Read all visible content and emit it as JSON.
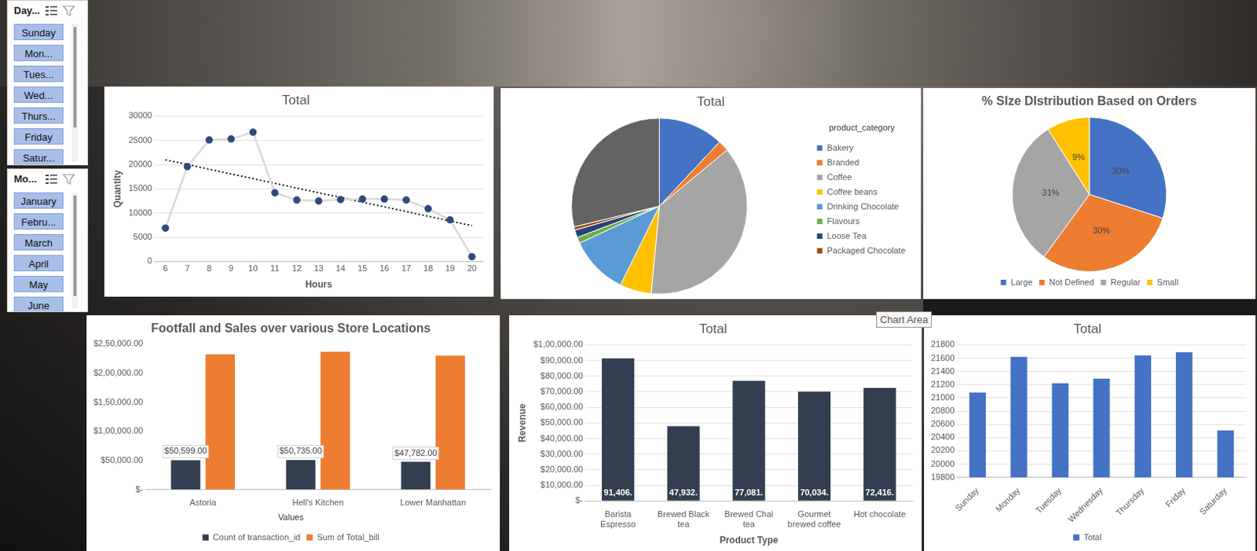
{
  "slicers": [
    {
      "title": "Day...",
      "items": [
        "Sunday",
        "Mon...",
        "Tues...",
        "Wed...",
        "Thurs...",
        "Friday",
        "Satur..."
      ]
    },
    {
      "title": "Mo...",
      "items": [
        "January",
        "Febru...",
        "March",
        "April",
        "May",
        "June"
      ]
    }
  ],
  "tooltip": "Chart Area",
  "chart_data": [
    {
      "type": "line",
      "title": "Total",
      "x": [
        6,
        7,
        8,
        9,
        10,
        11,
        12,
        13,
        14,
        15,
        16,
        17,
        18,
        19,
        20
      ],
      "values": [
        6900,
        19600,
        25100,
        25300,
        26700,
        14200,
        12700,
        12500,
        12800,
        12900,
        12900,
        12700,
        10900,
        8600,
        1000
      ],
      "color": "#d9d9d9",
      "marker": "circle",
      "trendline": {
        "x": [
          6,
          20
        ],
        "values": [
          21000,
          7400
        ],
        "line_style": "dotted",
        "color": "#000000"
      },
      "xlabel": "Hours",
      "ylabel": "Quantity",
      "xlim": [
        5.5,
        20.5
      ],
      "xticks": [
        6,
        7,
        8,
        9,
        10,
        11,
        12,
        13,
        14,
        15,
        16,
        17,
        18,
        19,
        20
      ],
      "ylim": [
        0,
        30000
      ],
      "yticks": [
        0,
        5000,
        10000,
        15000,
        20000,
        25000,
        30000
      ],
      "grid": true
    },
    {
      "type": "pie",
      "title": "Total",
      "legend_title": "product_category",
      "categories": [
        "Bakery",
        "Branded",
        "Coffee",
        "Coffee beans",
        "Drinking Chocolate",
        "Flavours",
        "Loose Tea",
        "Packaged Chocolate",
        null
      ],
      "values": [
        12,
        2,
        37.5,
        5.8,
        10.8,
        1.1,
        1.4,
        0.6,
        28.8
      ],
      "colors": [
        "#4472c4",
        "#ed7d31",
        "#a5a5a5",
        "#ffc000",
        "#5b9bd5",
        "#70ad47",
        "#264478",
        "#9e480e",
        "#636363"
      ],
      "legend": "right"
    },
    {
      "type": "pie",
      "title": "% SIze DIstribution Based on Orders",
      "categories": [
        "Large",
        "Not Defined",
        "Regular",
        "Small"
      ],
      "values": [
        30,
        30,
        31,
        9
      ],
      "value_labels": [
        "30%",
        "30%",
        "31%",
        "9%"
      ],
      "colors": [
        "#4472c4",
        "#ed7d31",
        "#a5a5a5",
        "#ffc000"
      ],
      "data_labels": true,
      "legend": "bottom"
    },
    {
      "type": "bar",
      "title": "Footfall and Sales over various Store Locations",
      "categories": [
        "Astoria",
        "Hell's Kitchen",
        "Lower Manhattan"
      ],
      "series": [
        {
          "name": "Count of transaction_id",
          "color": "#333f50",
          "values": [
            50599,
            50735,
            47782
          ],
          "value_labels": [
            "$50,599.00",
            "$50,735.00",
            "$47,782.00"
          ],
          "data_labels": true
        },
        {
          "name": "Sum of Total_bill",
          "color": "#ed7d31",
          "values": [
            232244,
            236511,
            230057
          ]
        }
      ],
      "ylim": [
        0,
        250000
      ],
      "yticks": [
        {
          "value": 0,
          "label": "$-"
        },
        {
          "value": 50000,
          "label": "$50,000.00"
        },
        {
          "value": 100000,
          "label": "$1,00,000.00"
        },
        {
          "value": 150000,
          "label": "$1,50,000.00"
        },
        {
          "value": 200000,
          "label": "$2,00,000.00"
        },
        {
          "value": 250000,
          "label": "$2,50,000.00"
        }
      ],
      "grid": false,
      "legend": "bottom",
      "legend_title": "Values"
    },
    {
      "type": "bar",
      "title": "Total",
      "categories": [
        "Barista Espresso",
        "Brewed Black tea",
        "Brewed Chai tea",
        "Gourmet brewed coffee",
        "Hot chocolate"
      ],
      "values": [
        91406,
        47932,
        77081,
        70034,
        72416
      ],
      "value_labels": [
        "91,406.",
        "47,932.",
        "77,081.",
        "70,034.",
        "72,416."
      ],
      "data_labels": true,
      "color": "#333f50",
      "xlabel": "Product Type",
      "ylabel": "Revenue",
      "ylim": [
        0,
        100000
      ],
      "yticks": [
        {
          "value": 0,
          "label": "$-"
        },
        {
          "value": 10000,
          "label": "$10,000.00"
        },
        {
          "value": 20000,
          "label": "$20,000.00"
        },
        {
          "value": 30000,
          "label": "$30,000.00"
        },
        {
          "value": 40000,
          "label": "$40,000.00"
        },
        {
          "value": 50000,
          "label": "$50,000.00"
        },
        {
          "value": 60000,
          "label": "$60,000.00"
        },
        {
          "value": 70000,
          "label": "$70,000.00"
        },
        {
          "value": 80000,
          "label": "$80,000.00"
        },
        {
          "value": 90000,
          "label": "$90,000.00"
        },
        {
          "value": 100000,
          "label": "$1,00,000.00"
        }
      ],
      "grid": true
    },
    {
      "type": "bar",
      "title": "Total",
      "categories": [
        "Sunday",
        "Monday",
        "Tuesday",
        "Wednesday",
        "Thursday",
        "Friday",
        "Saturday"
      ],
      "series": [
        {
          "name": "Total",
          "color": "#4472c4",
          "values": [
            21080,
            21620,
            21220,
            21290,
            21640,
            21690,
            20510
          ]
        }
      ],
      "ylim": [
        19800,
        21800
      ],
      "yticks": [
        19800,
        20000,
        20200,
        20400,
        20600,
        20800,
        21000,
        21200,
        21400,
        21600,
        21800
      ],
      "grid": true,
      "legend": "bottom"
    }
  ]
}
